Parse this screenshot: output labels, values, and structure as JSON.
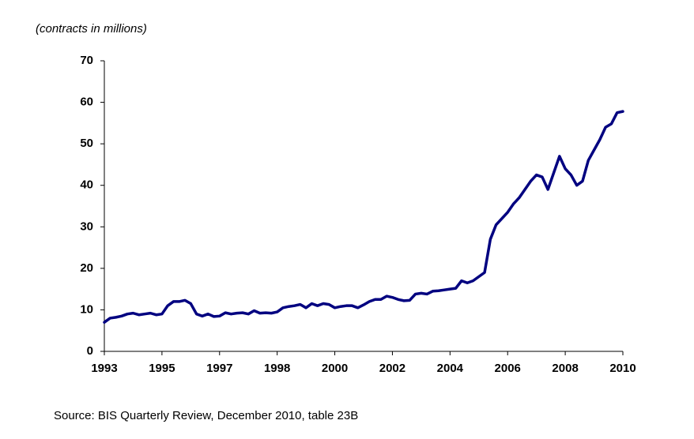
{
  "chart_data": {
    "type": "line",
    "subtitle": "(contracts in millions)",
    "source": "Source: BIS Quarterly Review, December 2010, table 23B",
    "categories": [
      "1993",
      null,
      null,
      null,
      null,
      null,
      null,
      null,
      null,
      null,
      "1995",
      null,
      null,
      null,
      null,
      null,
      null,
      null,
      null,
      null,
      "1997",
      null,
      null,
      null,
      null,
      null,
      null,
      null,
      null,
      null,
      "1998",
      null,
      null,
      null,
      null,
      null,
      null,
      null,
      null,
      null,
      "2000",
      null,
      null,
      null,
      null,
      null,
      null,
      null,
      null,
      null,
      "2002",
      null,
      null,
      null,
      null,
      null,
      null,
      null,
      null,
      null,
      "2004",
      null,
      null,
      null,
      null,
      null,
      null,
      null,
      null,
      null,
      "2006",
      null,
      null,
      null,
      null,
      null,
      null,
      null,
      null,
      null,
      "2008",
      null,
      null,
      null,
      null,
      null,
      null,
      null,
      null,
      null,
      "2010"
    ],
    "series": [
      {
        "color": "#000080",
        "values": [
          7,
          8,
          8.2,
          8.5,
          9,
          9.2,
          8.8,
          9,
          9.2,
          8.8,
          9,
          11,
          12,
          12,
          12.3,
          11.5,
          9,
          8.5,
          9,
          8.4,
          8.5,
          9.3,
          9,
          9.2,
          9.3,
          9,
          9.8,
          9.2,
          9.3,
          9.2,
          9.5,
          10.5,
          10.8,
          11,
          11.3,
          10.5,
          11.5,
          11,
          11.5,
          11.3,
          10.5,
          10.8,
          11,
          11,
          10.5,
          11.2,
          12,
          12.5,
          12.5,
          13.3,
          13,
          12.5,
          12.2,
          12.3,
          13.8,
          14,
          13.8,
          14.5,
          14.6,
          14.8,
          15,
          15.2,
          17,
          16.5,
          17,
          18,
          19,
          27,
          30.5,
          32,
          33.5,
          35.5,
          37,
          39,
          41,
          42.5,
          42,
          39,
          43,
          47,
          44,
          42.5,
          40,
          41,
          46,
          48.5,
          51,
          54,
          54.8,
          57.5,
          57.8
        ]
      }
    ],
    "ylim": [
      0,
      70
    ],
    "yticks": [
      0,
      10,
      20,
      30,
      40,
      50,
      60,
      70
    ],
    "grid": false
  }
}
